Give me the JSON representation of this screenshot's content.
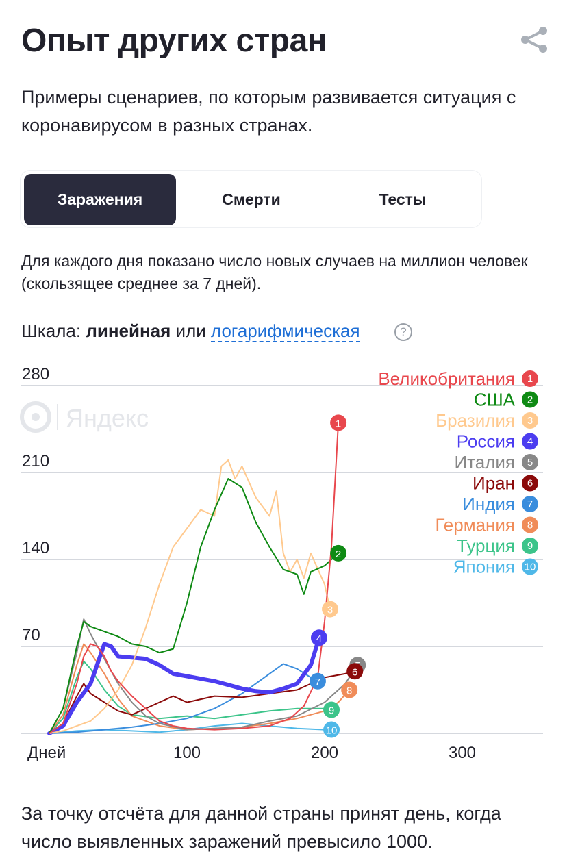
{
  "header": {
    "title": "Опыт других стран",
    "share_icon": "share-icon"
  },
  "intro": "Примеры сценариев, по которым развивается ситуация с коронавирусом в разных странах.",
  "tabs": [
    {
      "label": "Заражения",
      "active": true
    },
    {
      "label": "Смерти",
      "active": false
    },
    {
      "label": "Тесты",
      "active": false
    }
  ],
  "description": "Для каждого дня показано число новых случаев на миллион человек (скользящее среднее за 7 дней).",
  "scale": {
    "prefix": "Шкала:",
    "linear": "линейная",
    "or": "или",
    "log": "логарифмическая",
    "help": "?"
  },
  "watermark": "Яндекс",
  "footnote": "За точку отсчёта для данной страны принят день, когда число выявленных заражений превысило 1000.",
  "chart_data": {
    "type": "line",
    "title": "",
    "xlabel": "Дней",
    "ylabel": "",
    "xlim": [
      0,
      360
    ],
    "ylim": [
      0,
      280
    ],
    "x_ticks": [
      100,
      200,
      300
    ],
    "y_ticks": [
      70,
      140,
      210,
      280
    ],
    "grid": true,
    "legend": "top-right",
    "series": [
      {
        "name": "Великобритания",
        "rank": 1,
        "color": "#e8474d",
        "points": [
          [
            0,
            0
          ],
          [
            10,
            8
          ],
          [
            20,
            40
          ],
          [
            25,
            62
          ],
          [
            30,
            72
          ],
          [
            35,
            70
          ],
          [
            40,
            62
          ],
          [
            45,
            50
          ],
          [
            50,
            42
          ],
          [
            60,
            30
          ],
          [
            70,
            20
          ],
          [
            80,
            10
          ],
          [
            90,
            6
          ],
          [
            100,
            4
          ],
          [
            120,
            3
          ],
          [
            140,
            4
          ],
          [
            160,
            6
          ],
          [
            175,
            12
          ],
          [
            185,
            22
          ],
          [
            195,
            45
          ],
          [
            200,
            90
          ],
          [
            205,
            150
          ],
          [
            210,
            250
          ]
        ]
      },
      {
        "name": "США",
        "rank": 2,
        "color": "#0f8a14",
        "points": [
          [
            0,
            0
          ],
          [
            10,
            20
          ],
          [
            20,
            70
          ],
          [
            25,
            90
          ],
          [
            30,
            86
          ],
          [
            40,
            82
          ],
          [
            50,
            78
          ],
          [
            60,
            72
          ],
          [
            70,
            70
          ],
          [
            80,
            65
          ],
          [
            90,
            68
          ],
          [
            100,
            105
          ],
          [
            110,
            150
          ],
          [
            120,
            180
          ],
          [
            130,
            205
          ],
          [
            140,
            198
          ],
          [
            150,
            170
          ],
          [
            160,
            150
          ],
          [
            170,
            132
          ],
          [
            180,
            128
          ],
          [
            185,
            112
          ],
          [
            190,
            130
          ],
          [
            200,
            135
          ],
          [
            210,
            145
          ]
        ]
      },
      {
        "name": "Бразилия",
        "rank": 3,
        "color": "#ffc98e",
        "points": [
          [
            0,
            0
          ],
          [
            10,
            2
          ],
          [
            20,
            6
          ],
          [
            30,
            10
          ],
          [
            40,
            20
          ],
          [
            50,
            35
          ],
          [
            60,
            55
          ],
          [
            70,
            85
          ],
          [
            80,
            120
          ],
          [
            90,
            150
          ],
          [
            100,
            165
          ],
          [
            110,
            180
          ],
          [
            120,
            175
          ],
          [
            125,
            215
          ],
          [
            130,
            220
          ],
          [
            135,
            205
          ],
          [
            140,
            215
          ],
          [
            150,
            190
          ],
          [
            160,
            175
          ],
          [
            165,
            195
          ],
          [
            170,
            145
          ],
          [
            175,
            130
          ],
          [
            180,
            140
          ],
          [
            185,
            125
          ],
          [
            190,
            145
          ],
          [
            200,
            120
          ],
          [
            204,
            100
          ]
        ]
      },
      {
        "name": "Россия",
        "rank": 4,
        "color": "#4c3df0",
        "points": [
          [
            0,
            0
          ],
          [
            10,
            6
          ],
          [
            20,
            25
          ],
          [
            30,
            40
          ],
          [
            40,
            72
          ],
          [
            45,
            70
          ],
          [
            50,
            62
          ],
          [
            60,
            61
          ],
          [
            70,
            60
          ],
          [
            80,
            55
          ],
          [
            90,
            48
          ],
          [
            100,
            46
          ],
          [
            110,
            44
          ],
          [
            120,
            42
          ],
          [
            130,
            39
          ],
          [
            140,
            36
          ],
          [
            150,
            34
          ],
          [
            160,
            33
          ],
          [
            170,
            36
          ],
          [
            180,
            40
          ],
          [
            190,
            55
          ],
          [
            196,
            77
          ]
        ]
      },
      {
        "name": "Италия",
        "rank": 5,
        "color": "#888888",
        "points": [
          [
            0,
            0
          ],
          [
            10,
            20
          ],
          [
            20,
            65
          ],
          [
            25,
            92
          ],
          [
            30,
            80
          ],
          [
            40,
            60
          ],
          [
            50,
            40
          ],
          [
            60,
            25
          ],
          [
            70,
            14
          ],
          [
            80,
            8
          ],
          [
            100,
            3
          ],
          [
            120,
            4
          ],
          [
            140,
            5
          ],
          [
            160,
            10
          ],
          [
            180,
            14
          ],
          [
            200,
            25
          ],
          [
            215,
            40
          ],
          [
            224,
            55
          ]
        ]
      },
      {
        "name": "Иран",
        "rank": 6,
        "color": "#8b0a0a",
        "points": [
          [
            0,
            0
          ],
          [
            10,
            8
          ],
          [
            20,
            30
          ],
          [
            25,
            40
          ],
          [
            30,
            32
          ],
          [
            40,
            25
          ],
          [
            50,
            18
          ],
          [
            60,
            15
          ],
          [
            70,
            20
          ],
          [
            80,
            25
          ],
          [
            90,
            30
          ],
          [
            100,
            25
          ],
          [
            120,
            30
          ],
          [
            140,
            29
          ],
          [
            160,
            32
          ],
          [
            180,
            35
          ],
          [
            200,
            45
          ],
          [
            215,
            48
          ],
          [
            222,
            50
          ]
        ]
      },
      {
        "name": "Индия",
        "rank": 7,
        "color": "#3a8ddd",
        "points": [
          [
            0,
            0
          ],
          [
            20,
            1
          ],
          [
            40,
            3
          ],
          [
            60,
            5
          ],
          [
            80,
            8
          ],
          [
            100,
            12
          ],
          [
            120,
            20
          ],
          [
            140,
            32
          ],
          [
            160,
            48
          ],
          [
            170,
            56
          ],
          [
            180,
            52
          ],
          [
            190,
            45
          ],
          [
            195,
            42
          ]
        ]
      },
      {
        "name": "Германия",
        "rank": 8,
        "color": "#f08c59",
        "points": [
          [
            0,
            0
          ],
          [
            10,
            15
          ],
          [
            20,
            55
          ],
          [
            25,
            72
          ],
          [
            30,
            65
          ],
          [
            40,
            48
          ],
          [
            50,
            28
          ],
          [
            60,
            14
          ],
          [
            80,
            6
          ],
          [
            100,
            3
          ],
          [
            140,
            5
          ],
          [
            160,
            8
          ],
          [
            180,
            12
          ],
          [
            200,
            18
          ],
          [
            210,
            25
          ],
          [
            218,
            35
          ]
        ]
      },
      {
        "name": "Турция",
        "rank": 9,
        "color": "#3cc48a",
        "points": [
          [
            0,
            0
          ],
          [
            10,
            12
          ],
          [
            20,
            45
          ],
          [
            25,
            58
          ],
          [
            30,
            52
          ],
          [
            40,
            35
          ],
          [
            50,
            22
          ],
          [
            60,
            15
          ],
          [
            80,
            12
          ],
          [
            100,
            14
          ],
          [
            120,
            12
          ],
          [
            140,
            15
          ],
          [
            160,
            18
          ],
          [
            180,
            20
          ],
          [
            200,
            20
          ],
          [
            205,
            19
          ]
        ]
      },
      {
        "name": "Япония",
        "rank": 10,
        "color": "#4fb8e8",
        "points": [
          [
            0,
            0
          ],
          [
            20,
            2
          ],
          [
            40,
            3
          ],
          [
            60,
            2
          ],
          [
            80,
            1
          ],
          [
            100,
            3
          ],
          [
            120,
            6
          ],
          [
            140,
            8
          ],
          [
            160,
            6
          ],
          [
            180,
            4
          ],
          [
            200,
            3
          ],
          [
            205,
            3
          ]
        ]
      }
    ]
  }
}
